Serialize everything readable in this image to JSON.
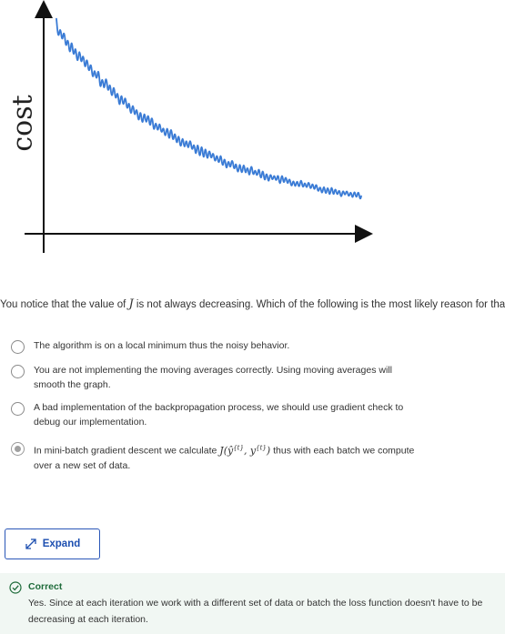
{
  "graph": {
    "y_axis_label": "cost"
  },
  "question": {
    "text_before": "You notice that the value of ",
    "math": "J",
    "text_after": " is not always decreasing. Which of the following is the most likely reason for that?"
  },
  "options": [
    {
      "text": "The algorithm is on a local minimum thus the noisy behavior.",
      "selected": false
    },
    {
      "text": "You are not implementing the moving averages correctly. Using moving averages will smooth the graph.",
      "selected": false
    },
    {
      "text": "A bad implementation of the backpropagation process, we should use gradient check to debug our implementation.",
      "selected": false
    },
    {
      "text_before": "In mini-batch gradient descent we calculate ",
      "math": "J(ŷ{t}, y{t})",
      "text_after": " thus with each batch we compute over a new set of data.",
      "selected": true
    }
  ],
  "expand_button": {
    "label": "Expand",
    "icon": "expand-arrows-icon"
  },
  "feedback": {
    "status": "Correct",
    "explanation": "Yes. Since at each iteration we work with a different set of data or batch the loss function doesn't have to be decreasing at each iteration.",
    "status_color": "#1e6b3a",
    "background": "#f1f7f3"
  },
  "colors": {
    "curve": "#3a7bd5",
    "axis": "#111111",
    "accent": "#2a56b8"
  }
}
